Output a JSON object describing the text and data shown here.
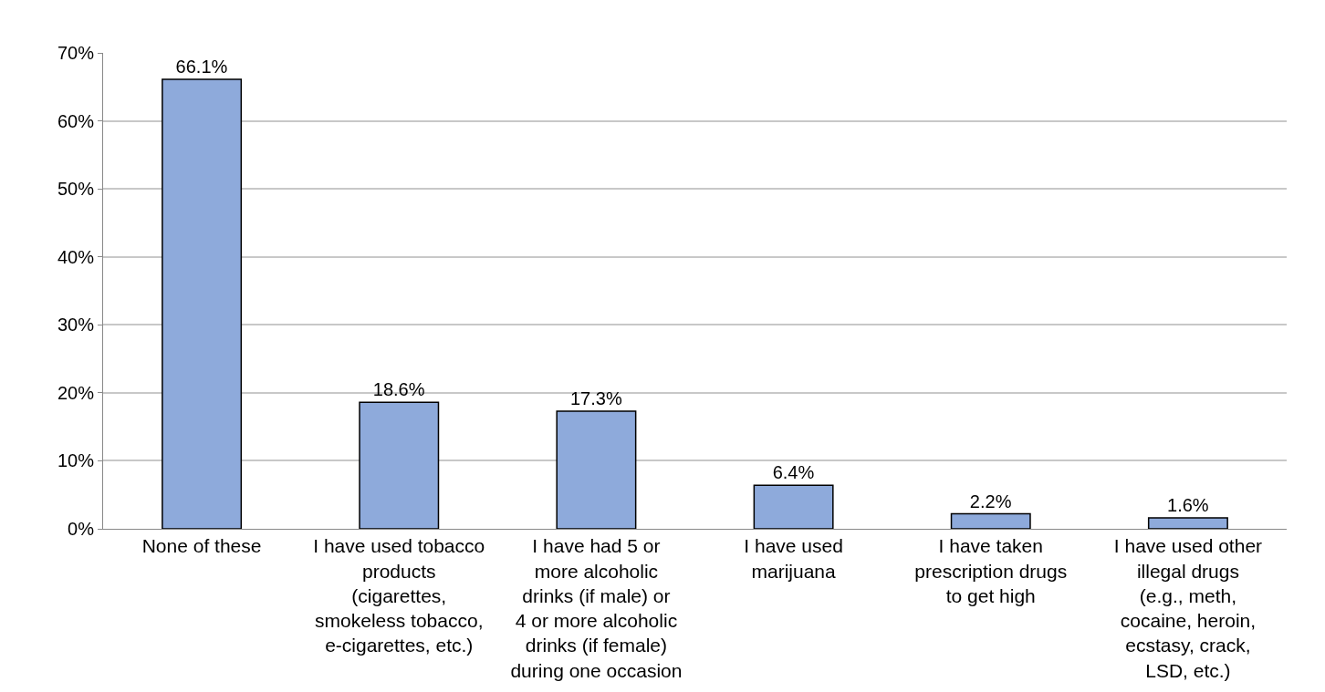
{
  "chart_data": {
    "type": "bar",
    "categories": [
      "None of these",
      "I have used tobacco products (cigarettes, smokeless tobacco, e-cigarettes, etc.)",
      "I have had 5 or more alcoholic drinks (if male) or 4 or more alcoholic drinks (if female) during one occasion",
      "I have used marijuana",
      "I have taken prescription drugs to get high",
      "I have used other illegal drugs (e.g., meth, cocaine, heroin, ecstasy, crack, LSD, etc.)"
    ],
    "values": [
      66.1,
      18.6,
      17.3,
      6.4,
      2.2,
      1.6
    ],
    "value_labels": [
      "66.1%",
      "18.6%",
      "17.3%",
      "6.4%",
      "2.2%",
      "1.6%"
    ],
    "color": "#8eaadb",
    "ylim": [
      0,
      70
    ],
    "yticks": [
      {
        "value": 0,
        "label": "0%"
      },
      {
        "value": 10,
        "label": "10%"
      },
      {
        "value": 20,
        "label": "20%"
      },
      {
        "value": 30,
        "label": "30%"
      },
      {
        "value": 40,
        "label": "40%"
      },
      {
        "value": 50,
        "label": "50%"
      },
      {
        "value": 60,
        "label": "60%"
      },
      {
        "value": 70,
        "label": "70%"
      }
    ],
    "grid": "y",
    "legend": false
  }
}
